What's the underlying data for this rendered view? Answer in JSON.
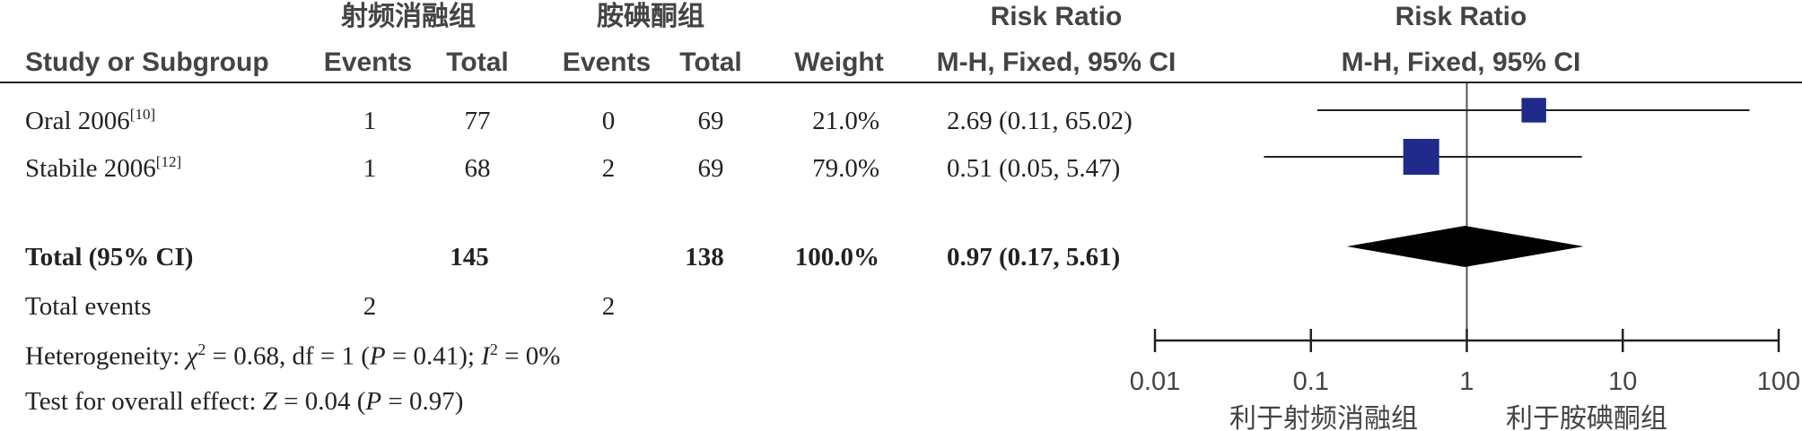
{
  "header": {
    "group_exp": "射频消融组",
    "group_ctrl": "胺碘酮组",
    "rr_title_table": "Risk Ratio",
    "rr_title_plot": "Risk Ratio",
    "study_col": "Study or Subgroup",
    "events_exp": "Events",
    "total_exp": "Total",
    "events_ctrl": "Events",
    "total_ctrl": "Total",
    "weight": "Weight",
    "method_table": "M-H, Fixed, 95% CI",
    "method_plot": "M-H, Fixed, 95% CI"
  },
  "studies": [
    {
      "name": "Oral 2006",
      "ref": "[10]",
      "events_exp": "1",
      "total_exp": "77",
      "events_ctrl": "0",
      "total_ctrl": "69",
      "weight": "21.0%",
      "ci_text": "2.69 (0.11, 65.02)"
    },
    {
      "name": "Stabile 2006",
      "ref": "[12]",
      "events_exp": "1",
      "total_exp": "68",
      "events_ctrl": "2",
      "total_ctrl": "69",
      "weight": "79.0%",
      "ci_text": "0.51 (0.05, 5.47)"
    }
  ],
  "total": {
    "label": "Total (95% CI)",
    "total_exp": "145",
    "total_ctrl": "138",
    "weight": "100.0%",
    "ci_text": "0.97 (0.17, 5.61)"
  },
  "total_events": {
    "label": "Total events",
    "exp": "2",
    "ctrl": "2"
  },
  "heterogeneity": {
    "label": "Heterogeneity: ",
    "chi_sym": "χ",
    "chi_sup": "2",
    "chi_rest": " = 0.68, df = 1 (",
    "p_sym": "P",
    "p_rest": " = 0.41); ",
    "i_sym": "I",
    "i_sup": "2",
    "i_rest": " = 0%"
  },
  "overall": {
    "label": "Test for overall effect: ",
    "z_sym": "Z",
    "z_rest": " = 0.04 (",
    "p_sym": "P",
    "p_rest": " = 0.97)"
  },
  "axis": {
    "ticks": [
      "0.01",
      "0.1",
      "1",
      "10",
      "100"
    ],
    "favors_left": "利于射频消融组",
    "favors_right": "利于胺碘酮组"
  },
  "chart_data": {
    "type": "forest",
    "scale": "log",
    "xlim": [
      0.01,
      100
    ],
    "ticks": [
      0.01,
      0.1,
      1,
      10,
      100
    ],
    "reference_line": 1,
    "marker_color": "#1f2a8a",
    "studies": [
      {
        "name": "Oral 2006",
        "rr": 2.69,
        "lower": 0.11,
        "upper": 65.02,
        "weight": 21.0
      },
      {
        "name": "Stabile 2006",
        "rr": 0.51,
        "lower": 0.05,
        "upper": 5.47,
        "weight": 79.0
      }
    ],
    "pooled": {
      "rr": 0.97,
      "lower": 0.17,
      "upper": 5.61
    }
  }
}
